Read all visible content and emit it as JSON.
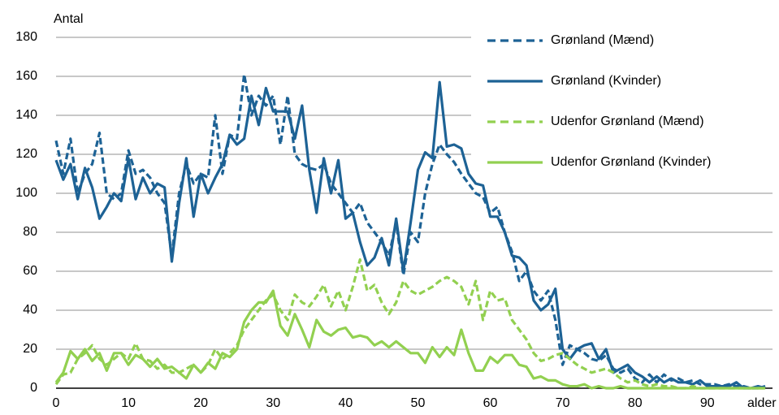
{
  "chart_data": {
    "type": "line",
    "y_label": "Antal",
    "x_label": "alder",
    "x": [
      0,
      1,
      2,
      3,
      4,
      5,
      6,
      7,
      8,
      9,
      10,
      11,
      12,
      13,
      14,
      15,
      16,
      17,
      18,
      19,
      20,
      21,
      22,
      23,
      24,
      25,
      26,
      27,
      28,
      29,
      30,
      31,
      32,
      33,
      34,
      35,
      36,
      37,
      38,
      39,
      40,
      41,
      42,
      43,
      44,
      45,
      46,
      47,
      48,
      49,
      50,
      51,
      52,
      53,
      54,
      55,
      56,
      57,
      58,
      59,
      60,
      61,
      62,
      63,
      64,
      65,
      66,
      67,
      68,
      69,
      70,
      71,
      72,
      73,
      74,
      75,
      76,
      77,
      78,
      79,
      80,
      81,
      82,
      83,
      84,
      85,
      86,
      87,
      88,
      89,
      90,
      91,
      92,
      93,
      94,
      95,
      96,
      97,
      98
    ],
    "series": [
      {
        "name": "Grønland (Mænd)",
        "color": "#1d6295",
        "linestyle": "dashed",
        "values": [
          127,
          110,
          128,
          100,
          110,
          115,
          131,
          100,
          97,
          100,
          122,
          110,
          112,
          108,
          100,
          95,
          68,
          100,
          115,
          105,
          110,
          108,
          140,
          110,
          130,
          128,
          161,
          140,
          150,
          145,
          150,
          125,
          150,
          120,
          115,
          113,
          112,
          115,
          105,
          100,
          95,
          90,
          95,
          85,
          80,
          75,
          68,
          85,
          58,
          80,
          75,
          100,
          115,
          125,
          120,
          116,
          110,
          105,
          100,
          98,
          90,
          93,
          80,
          70,
          55,
          60,
          50,
          45,
          50,
          35,
          12,
          22,
          20,
          18,
          15,
          14,
          17,
          10,
          8,
          10,
          5,
          3,
          7,
          3,
          7,
          4,
          5,
          3,
          4,
          2,
          2,
          2,
          1,
          2,
          1,
          1,
          0,
          0,
          1
        ]
      },
      {
        "name": "Grønland (Kvinder)",
        "color": "#1d6295",
        "linestyle": "solid",
        "values": [
          117,
          107,
          115,
          97,
          113,
          103,
          87,
          93,
          100,
          96,
          118,
          97,
          108,
          100,
          105,
          103,
          65,
          95,
          118,
          88,
          110,
          100,
          108,
          115,
          130,
          125,
          128,
          150,
          135,
          154,
          142,
          142,
          142,
          128,
          145,
          112,
          90,
          118,
          100,
          117,
          87,
          90,
          75,
          63,
          67,
          77,
          63,
          87,
          60,
          85,
          112,
          121,
          118,
          157,
          124,
          125,
          123,
          110,
          105,
          104,
          88,
          88,
          80,
          68,
          67,
          63,
          45,
          40,
          43,
          51,
          20,
          15,
          20,
          22,
          23,
          15,
          20,
          8,
          10,
          12,
          8,
          6,
          3,
          6,
          3,
          5,
          3,
          3,
          2,
          4,
          1,
          1,
          1,
          1,
          3,
          0,
          0,
          1,
          0
        ]
      },
      {
        "name": "Udenfor Grønland (Mænd)",
        "color": "#92d050",
        "linestyle": "dashed",
        "values": [
          2,
          7,
          8,
          15,
          18,
          22,
          15,
          12,
          15,
          18,
          15,
          23,
          15,
          14,
          10,
          12,
          8,
          8,
          10,
          12,
          8,
          12,
          20,
          15,
          18,
          22,
          30,
          35,
          40,
          45,
          48,
          40,
          35,
          48,
          44,
          42,
          47,
          53,
          42,
          50,
          40,
          52,
          66,
          50,
          53,
          44,
          38,
          44,
          55,
          50,
          48,
          50,
          52,
          55,
          57,
          55,
          52,
          43,
          55,
          35,
          50,
          45,
          46,
          35,
          30,
          25,
          18,
          14,
          15,
          17,
          18,
          15,
          12,
          10,
          8,
          9,
          10,
          8,
          5,
          3,
          4,
          2,
          1,
          2,
          1,
          1,
          0,
          0,
          1,
          0,
          0,
          0,
          0,
          0,
          0,
          0,
          0,
          0,
          0
        ]
      },
      {
        "name": "Udenfor Grønland (Kvinder)",
        "color": "#92d050",
        "linestyle": "solid",
        "values": [
          3,
          8,
          19,
          15,
          20,
          14,
          18,
          9,
          18,
          18,
          12,
          17,
          15,
          11,
          15,
          10,
          11,
          8,
          5,
          12,
          8,
          13,
          10,
          18,
          16,
          20,
          34,
          40,
          44,
          44,
          50,
          32,
          27,
          38,
          30,
          21,
          35,
          29,
          27,
          30,
          31,
          26,
          27,
          26,
          22,
          24,
          21,
          24,
          21,
          18,
          18,
          13,
          21,
          16,
          21,
          17,
          30,
          18,
          9,
          9,
          16,
          13,
          17,
          17,
          12,
          11,
          5,
          6,
          4,
          4,
          2,
          1,
          1,
          2,
          0,
          1,
          0,
          0,
          1,
          0,
          0,
          0,
          0,
          0,
          0,
          0,
          0,
          0,
          0,
          0,
          0,
          0,
          0,
          0,
          0,
          0,
          0,
          0,
          0
        ]
      }
    ],
    "xlim": [
      0,
      99
    ],
    "xticks": [
      0,
      10,
      20,
      30,
      40,
      50,
      60,
      70,
      80,
      90
    ],
    "ylim": [
      0,
      180
    ],
    "yticks": [
      0,
      20,
      40,
      60,
      80,
      100,
      120,
      140,
      160,
      180
    ],
    "grid": true,
    "legend": "upper right"
  }
}
